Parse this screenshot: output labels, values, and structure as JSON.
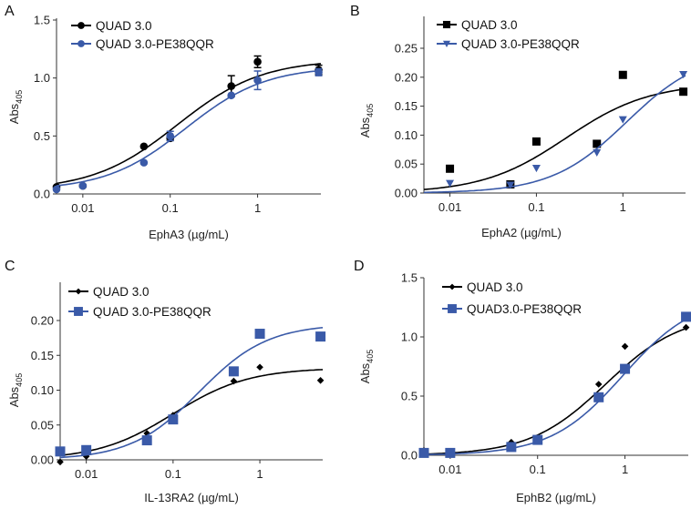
{
  "colors": {
    "black": "#000000",
    "blue": "#3a5aa8"
  },
  "chart_data": [
    {
      "panel": "A",
      "type": "scatter",
      "xscale": "log",
      "xlabel": "EphA3 (µg/mL)",
      "ylabel": "Abs",
      "ylabel_sub": "405",
      "xlim": [
        0.005,
        5.3
      ],
      "ylim": [
        0,
        1.5
      ],
      "xticks": [
        "0.01",
        "0.1",
        "1"
      ],
      "yticks": [
        "0.0",
        "0.5",
        "1.0",
        "1.5"
      ],
      "x": [
        0.005,
        0.01,
        0.05,
        0.1,
        0.5,
        1,
        5
      ],
      "series": [
        {
          "name": "QUAD 3.0",
          "color": "black",
          "marker": "circle",
          "values": [
            0.06,
            0.07,
            0.41,
            0.48,
            0.93,
            1.14,
            1.07
          ],
          "errors": [
            0,
            0,
            0,
            0.02,
            0.09,
            0.05,
            0.04
          ],
          "fit": {
            "bottom": 0.03,
            "top": 1.16,
            "ec50": 0.12,
            "hill": 0.9
          }
        },
        {
          "name": "QUAD 3.0-PE38QQR",
          "color": "blue",
          "marker": "circle",
          "values": [
            0.04,
            0.07,
            0.27,
            0.5,
            0.85,
            0.98,
            1.05
          ],
          "errors": [
            0,
            0,
            0,
            0.04,
            0,
            0.08,
            0.03
          ],
          "fit": {
            "bottom": 0.03,
            "top": 1.1,
            "ec50": 0.15,
            "hill": 0.95
          }
        }
      ]
    },
    {
      "panel": "B",
      "type": "scatter",
      "xscale": "log",
      "xlabel": "EphA2 (µg/mL)",
      "ylabel": "Abs",
      "ylabel_sub": "405",
      "xlim": [
        0.005,
        5.3
      ],
      "ylim": [
        0,
        0.25
      ],
      "xticks": [
        "0.01",
        "0.1",
        "1"
      ],
      "yticks": [
        "0.00",
        "0.05",
        "0.10",
        "0.15",
        "0.20",
        "0.25"
      ],
      "x": [
        0.01,
        0.05,
        0.1,
        0.5,
        1,
        5
      ],
      "series": [
        {
          "name": "QUAD 3.0",
          "color": "black",
          "marker": "square",
          "values": [
            0.042,
            0.015,
            0.089,
            0.085,
            0.204,
            0.175
          ],
          "fit": {
            "bottom": 0.0,
            "top": 0.19,
            "ec50": 0.22,
            "hill": 0.9
          }
        },
        {
          "name": "QUAD 3.0-PE38QQR",
          "color": "blue",
          "marker": "triangle-down",
          "values": [
            0.017,
            0.014,
            0.043,
            0.07,
            0.127,
            0.205
          ],
          "fit": {
            "bottom": 0.0,
            "top": 0.245,
            "ec50": 1.1,
            "hill": 1.0
          }
        }
      ]
    },
    {
      "panel": "C",
      "type": "scatter",
      "xscale": "log",
      "xlabel": "IL-13RA2 (µg/mL)",
      "ylabel": "Abs",
      "ylabel_sub": "405",
      "xlim": [
        0.005,
        5.3
      ],
      "ylim": [
        0,
        0.2
      ],
      "xticks": [
        "0.01",
        "0.1",
        "1"
      ],
      "yticks": [
        "0.00",
        "0.05",
        "0.10",
        "0.15",
        "0.20"
      ],
      "x": [
        0.005,
        0.01,
        0.05,
        0.1,
        0.5,
        1,
        5
      ],
      "series": [
        {
          "name": "QUAD 3.0",
          "color": "black",
          "marker": "diamond",
          "values": [
            -0.003,
            0.005,
            0.038,
            0.064,
            0.113,
            0.133,
            0.114
          ],
          "fit": {
            "bottom": 0.0,
            "top": 0.132,
            "ec50": 0.1,
            "hill": 1.0
          }
        },
        {
          "name": "QUAD 3.0-PE38QQR",
          "color": "blue",
          "marker": "square",
          "values": [
            0.012,
            0.014,
            0.028,
            0.058,
            0.127,
            0.181,
            0.177
          ],
          "fit": {
            "bottom": 0.0,
            "top": 0.195,
            "ec50": 0.2,
            "hill": 1.1
          }
        }
      ]
    },
    {
      "panel": "D",
      "type": "scatter",
      "xscale": "log",
      "xlabel": "EphB2 (µg/mL)",
      "ylabel": "Abs",
      "ylabel_sub": "405",
      "xlim": [
        0.005,
        5.3
      ],
      "ylim": [
        0,
        1.5
      ],
      "xticks": [
        "0.01",
        "0.1",
        "1"
      ],
      "yticks": [
        "0.0",
        "0.5",
        "1.0",
        "1.5"
      ],
      "x": [
        0.005,
        0.01,
        0.05,
        0.1,
        0.5,
        1,
        5
      ],
      "series": [
        {
          "name": "QUAD 3.0",
          "color": "black",
          "marker": "diamond",
          "values": [
            0.04,
            0.02,
            0.11,
            0.13,
            0.6,
            0.92,
            1.08
          ],
          "fit": {
            "bottom": 0.0,
            "top": 1.2,
            "ec50": 0.6,
            "hill": 1.0
          }
        },
        {
          "name": "QUAD3.0-PE38QQR",
          "color": "blue",
          "marker": "square",
          "values": [
            0.02,
            0.02,
            0.07,
            0.13,
            0.49,
            0.73,
            1.17
          ],
          "fit": {
            "bottom": 0.0,
            "top": 1.35,
            "ec50": 0.95,
            "hill": 1.05
          }
        }
      ]
    }
  ]
}
